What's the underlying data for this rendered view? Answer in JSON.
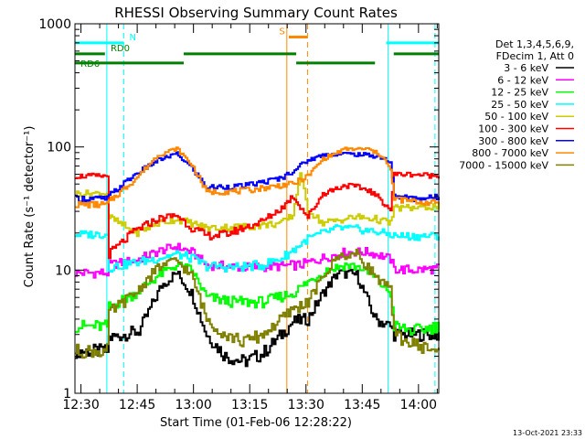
{
  "chart_data": {
    "type": "line",
    "title": "RHESSI Observing Summary Count Rates",
    "xlabel": "Start Time (01-Feb-06 12:28:22)",
    "ylabel": "Count Rate (s⁻¹ detector⁻¹)",
    "y_scale": "log",
    "x_unit": "minutes after 12:28:22 UT",
    "xlim": [
      0,
      97
    ],
    "ylim": [
      1,
      1000
    ],
    "x_ticks": [
      {
        "value": 1.6,
        "label": "12:30"
      },
      {
        "value": 16.6,
        "label": "12:45"
      },
      {
        "value": 31.6,
        "label": "13:00"
      },
      {
        "value": 46.6,
        "label": "13:15"
      },
      {
        "value": 61.6,
        "label": "13:30"
      },
      {
        "value": 76.6,
        "label": "13:45"
      },
      {
        "value": 91.6,
        "label": "14:00"
      }
    ],
    "y_ticks": [
      {
        "value": 1,
        "label": "1"
      },
      {
        "value": 10,
        "label": "10"
      },
      {
        "value": 100,
        "label": "100"
      },
      {
        "value": 1000,
        "label": "1000"
      }
    ],
    "legend": {
      "placement": "right",
      "header": [
        "Det 1,3,4,5,6,9,",
        "FDecim 1, Att 0"
      ]
    },
    "series": [
      {
        "name": "3 - 6 keV",
        "color": "#000000",
        "x": [
          0,
          8.5,
          9,
          17,
          23,
          27,
          31,
          35,
          40,
          45,
          50,
          55,
          58,
          62,
          66,
          70,
          75,
          80,
          84,
          85,
          90,
          97
        ],
        "y": [
          2.2,
          2.2,
          2.8,
          3.2,
          7.5,
          9.5,
          6.5,
          3.0,
          2.0,
          1.8,
          2.1,
          3.0,
          3.8,
          4.0,
          6.5,
          9.5,
          9.2,
          4.0,
          3.5,
          3.0,
          3.0,
          3.0
        ]
      },
      {
        "name": "6 - 12 keV",
        "color": "#ff00ff",
        "x": [
          0,
          8.5,
          9,
          16,
          23,
          27,
          31,
          35,
          45,
          55,
          60,
          62,
          66,
          72,
          78,
          82,
          84,
          85,
          90,
          97
        ],
        "y": [
          9.5,
          9.5,
          11,
          12,
          14.5,
          15.5,
          14,
          11,
          10.5,
          10.8,
          11,
          11.5,
          12.5,
          14,
          14,
          13,
          12.2,
          10.2,
          10,
          10.3
        ]
      },
      {
        "name": "12 - 25 keV",
        "color": "#00ff00",
        "x": [
          0,
          8.5,
          9,
          16,
          22,
          27,
          31,
          35,
          42,
          50,
          58,
          62,
          67,
          72,
          76,
          80,
          84,
          85,
          90,
          97
        ],
        "y": [
          3.5,
          3.5,
          5,
          6.5,
          9,
          11,
          10,
          6,
          5.5,
          5.5,
          6.5,
          8,
          10,
          11,
          10.5,
          8.5,
          6.5,
          3.5,
          3.2,
          3.5
        ]
      },
      {
        "name": "25 - 50 keV",
        "color": "#00ffff",
        "x": [
          0,
          8.5,
          9,
          16,
          22,
          27,
          31,
          35,
          42,
          50,
          55,
          58,
          62,
          66,
          70,
          75,
          80,
          84,
          85,
          90,
          97
        ],
        "y": [
          19.5,
          19.5,
          10.5,
          11.5,
          12.5,
          13.5,
          12.5,
          10.8,
          10.5,
          11,
          12.5,
          14.5,
          18,
          20,
          22,
          21.5,
          20.5,
          19.5,
          19,
          18.8,
          19
        ]
      },
      {
        "name": "50 - 100 keV",
        "color": "#cccc00",
        "x": [
          0,
          8.5,
          9,
          16,
          22,
          27,
          31,
          35,
          45,
          55,
          58,
          60,
          62,
          66,
          70,
          75,
          80,
          84,
          85,
          90,
          97
        ],
        "y": [
          42,
          42,
          27,
          20,
          24,
          26,
          24,
          22,
          22.5,
          24,
          28,
          62,
          31,
          24,
          25.5,
          27,
          26,
          24,
          32,
          32,
          33
        ]
      },
      {
        "name": "100 - 300 keV",
        "color": "#ff0000",
        "x": [
          0,
          8.5,
          9,
          16,
          22,
          27,
          31,
          35,
          40,
          50,
          55,
          58,
          62,
          66,
          72,
          78,
          82,
          84,
          85,
          90,
          97
        ],
        "y": [
          58,
          58,
          13.5,
          21,
          26,
          28,
          22,
          19,
          19.5,
          25,
          32,
          40,
          27,
          42,
          49,
          45,
          36,
          31,
          60,
          60,
          58
        ]
      },
      {
        "name": "300 - 800 keV",
        "color": "#0000ff",
        "x": [
          0,
          8.5,
          9,
          16,
          22,
          27,
          31,
          35,
          45,
          55,
          58,
          62,
          66,
          72,
          78,
          82,
          84,
          85,
          90,
          97
        ],
        "y": [
          38,
          38,
          40,
          60,
          78,
          88,
          68,
          47,
          48,
          56,
          64,
          78,
          86,
          88,
          86,
          82,
          74,
          40,
          38,
          39
        ]
      },
      {
        "name": "800 - 7000 keV",
        "color": "#ff8800",
        "x": [
          0,
          8.5,
          9,
          16,
          22,
          27,
          31,
          35,
          45,
          55,
          58,
          62,
          66,
          72,
          78,
          82,
          84,
          85,
          90,
          97
        ],
        "y": [
          34,
          34,
          36,
          55,
          86,
          97,
          72,
          43,
          44,
          49,
          50,
          58,
          80,
          96,
          96,
          84,
          64,
          38,
          36,
          35
        ]
      },
      {
        "name": "7000 - 15000 keV",
        "color": "#808000",
        "x": [
          0,
          8.5,
          9,
          16,
          22,
          27,
          31,
          35,
          40,
          45,
          50,
          55,
          58,
          62,
          66,
          70,
          75,
          80,
          84,
          85,
          90,
          97
        ],
        "y": [
          2.2,
          2.2,
          4.5,
          6.5,
          10.5,
          12,
          9,
          4.0,
          3.0,
          2.6,
          3.0,
          4.0,
          4.8,
          5.5,
          8.8,
          13,
          13.5,
          9,
          6.8,
          3.0,
          2.5,
          2.2
        ]
      }
    ],
    "annotations": [
      {
        "text": "N",
        "color": "#00ffff"
      },
      {
        "text": "RD0",
        "color": "#008000"
      },
      {
        "text": "RD6",
        "color": "#008000"
      },
      {
        "text": "S",
        "color": "#ff8800"
      }
    ],
    "state_bars": [
      {
        "name": "N",
        "color": "#00ffff",
        "level": 700,
        "segments": [
          [
            0,
            13
          ],
          [
            83,
            97
          ]
        ]
      },
      {
        "name": "RD0",
        "color": "#008000",
        "level": 570,
        "segments": [
          [
            0,
            8
          ],
          [
            29,
            59
          ],
          [
            85,
            97
          ]
        ]
      },
      {
        "name": "RD6",
        "color": "#008000",
        "level": 480,
        "segments": [
          [
            0,
            29
          ],
          [
            59,
            80
          ]
        ]
      },
      {
        "name": "S",
        "color": "#ff8800",
        "level": 780,
        "segments": [
          [
            57,
            62
          ]
        ]
      }
    ],
    "vertical_markers": [
      {
        "x": 8.5,
        "color": "#00ffff",
        "style": "solid"
      },
      {
        "x": 13,
        "color": "#00ffff",
        "style": "dashed"
      },
      {
        "x": 83.5,
        "color": "#00ffff",
        "style": "solid"
      },
      {
        "x": 96,
        "color": "#00ffff",
        "style": "dashed"
      },
      {
        "x": 56.5,
        "color": "#ff8800",
        "style": "solid"
      },
      {
        "x": 62,
        "color": "#ff8800",
        "style": "dashed"
      }
    ],
    "footer_timestamp": "13-Oct-2021 23:33"
  }
}
